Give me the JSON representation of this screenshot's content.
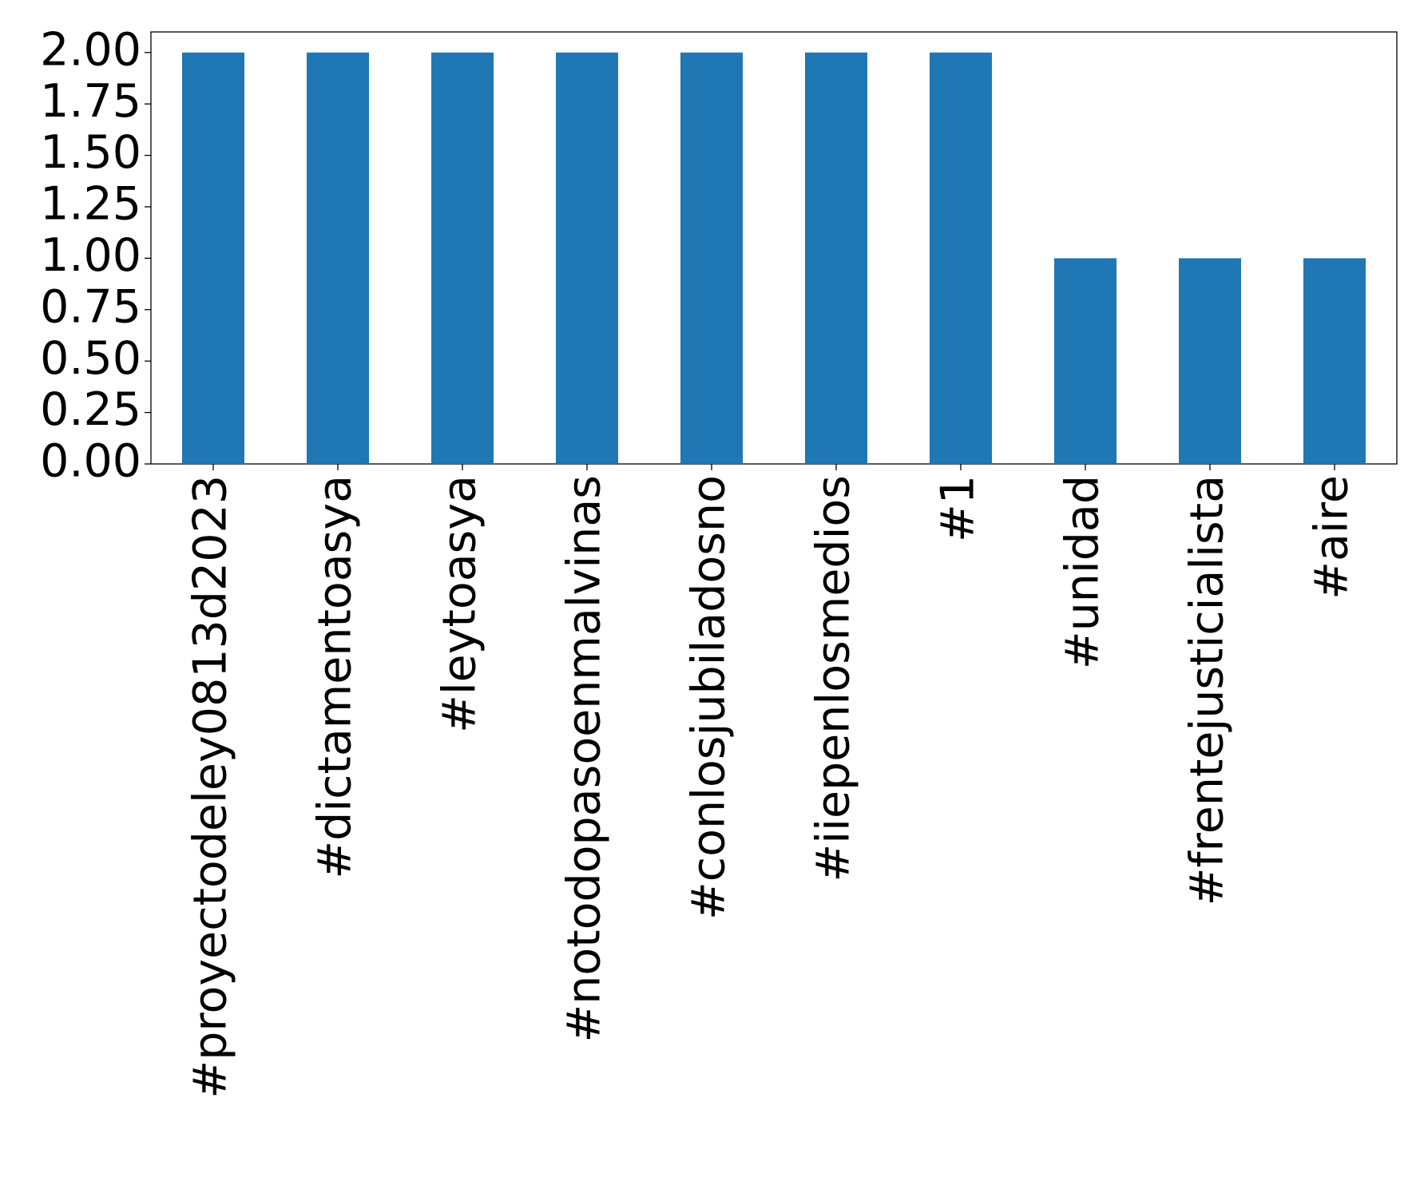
{
  "chart_data": {
    "type": "bar",
    "categories": [
      "#proyectodeley0813d2023",
      "#dictamentoasya",
      "#leytoasya",
      "#notodopasoenmalvinas",
      "#conlosjubiladosno",
      "#iiepenlosmedios",
      "#1",
      "#unidad",
      "#frentejusticialista",
      "#aire"
    ],
    "values": [
      2,
      2,
      2,
      2,
      2,
      2,
      2,
      1,
      1,
      1
    ],
    "color": "#1f77b4",
    "ylim": [
      0,
      2.1
    ],
    "yticks": [
      {
        "value": 0,
        "label": "0.00"
      },
      {
        "value": 0.25,
        "label": "0.25"
      },
      {
        "value": 0.5,
        "label": "0.50"
      },
      {
        "value": 0.75,
        "label": "0.75"
      },
      {
        "value": 1,
        "label": "1.00"
      },
      {
        "value": 1.25,
        "label": "1.25"
      },
      {
        "value": 1.5,
        "label": "1.50"
      },
      {
        "value": 1.75,
        "label": "1.75"
      },
      {
        "value": 2,
        "label": "2.00"
      }
    ],
    "grid": false
  }
}
